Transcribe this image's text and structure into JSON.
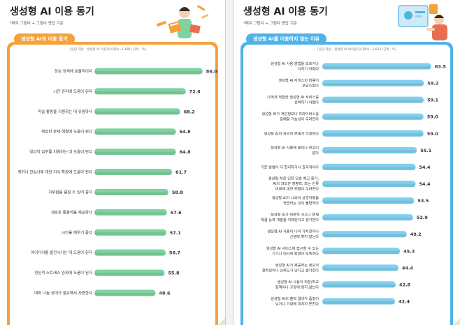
{
  "colors": {
    "left_accent": "#f4a23c",
    "left_bar": "#7ed3a0",
    "right_accent": "#4fb3e8",
    "right_bar": "#7fd0ee"
  },
  "left": {
    "title": "생성형 AI 이용 동기",
    "note": "*매우 그렇다 + 그렇다 응답 기준",
    "subtitle": "생성형 AI의 이용 동기",
    "basis": "[응답 대상 : 생성형 AI 이용자(사례수=1,681) 단위 : %]",
    "illustration": "person-reading-books-illustration"
  },
  "right": {
    "title": "생성형 AI 이용 동기",
    "note": "*매우 그렇다 + 그렇다 응답 기준",
    "subtitle": "생성형 AI를 이용하지 않는 이유",
    "basis": "[응답 대상 : 생성형 AI 비이용자(사례수=2,643) 단위 : %]",
    "illustration": "person-computer-screen-illustration"
  },
  "chart_data": [
    {
      "type": "bar",
      "orientation": "horizontal",
      "title": "생성형 AI의 이용 동기",
      "categories": [
        "정보 검색에 효율적이다",
        "시간 관리에 도움이 된다",
        "학습 활동을 지원하는 데 유용하다",
        "복잡한 문제 해결에 도움이 된다",
        "일상적 업무를 지원하는 데 도움이 된다",
        "취미나 관심사에 대한 지식 확장에 도움이 된다",
        "지루함을 줄일 수 있어 좋다",
        "새로운 통찰력을 제공한다",
        "시간을 때우기 좋다",
        "아이디어를 발전시키는 데 도움이 된다",
        "정신적 스트레스 완화에 도움이 된다",
        "대화 나눌 상대가 필요해서 사용한다"
      ],
      "values": [
        86.0,
        72.6,
        68.2,
        64.8,
        64.8,
        61.7,
        58.8,
        57.6,
        57.1,
        56.7,
        55.8,
        48.6
      ],
      "value_labels": [
        "86.0",
        "72.6",
        "68.2",
        "64.8",
        "64.8",
        "61.7",
        "58.8",
        "57.6",
        "57.1",
        "56.7",
        "55.8",
        "48.6"
      ],
      "unit": "%",
      "xlim": [
        0,
        90
      ],
      "grid": false
    },
    {
      "type": "bar",
      "orientation": "horizontal",
      "title": "생성형 AI를 이용하지 않는 이유",
      "categories": [
        "생성형 AI 사용 방법을 모르거나 익히기 어렵다",
        "생성형 AI 서비스의 비용이 부담스럽다",
        "나에게 적합한 생성형 AI 서비스를 선택하기 어렵다",
        "생성형 AI가 개인정보나 프라이버시를 침해할 가능성이 우려된다",
        "생성형 AI의 윤리적 문제가 걱정된다",
        "생성형 AI 사용에 흥미나 관심이 없다",
        "기존 방법이 더 편리하거나 효과적이다",
        "생성형 AI로 인한 단순 해고 증가, AI의 과도한 영향력, 또는 인류 미래에 대한 위협이 우려된다",
        "생성형 AI가 나와의 상호작용을 학습하는 것이 불편하다",
        "생성형 AI가 비판적 사고나 문제 해결 능력 개발을 저해한다고 생각한다",
        "생성형 AI 사용이 나의 가치관이나 신념에 맞지 않는다",
        "생성형 AI 서비스에 접근할 수 있는 기기나 인터넷 환경이 부족하다",
        "생성형 AI가 제공하는 정보의 정확성이나 신뢰도가 낮다고 생각한다",
        "생성형 AI 사용이 직장/학교 정책이나 규정에 맞지 않는다",
        "생성형 AI의 출력 결과가 품질이 낮거나 기대에 미치지 못한다"
      ],
      "values": [
        63.5,
        59.2,
        59.1,
        59.0,
        59.0,
        55.1,
        54.4,
        54.4,
        53.5,
        52.9,
        49.2,
        45.3,
        44.4,
        42.8,
        42.4
      ],
      "value_labels": [
        "63.5",
        "59.2",
        "59.1",
        "59.0",
        "59.0",
        "55.1",
        "54.4",
        "54.4",
        "53.5",
        "52.9",
        "49.2",
        "45.3",
        "44.4",
        "42.8",
        "42.4"
      ],
      "unit": "%",
      "xlim": [
        0,
        66
      ],
      "grid": false
    }
  ]
}
